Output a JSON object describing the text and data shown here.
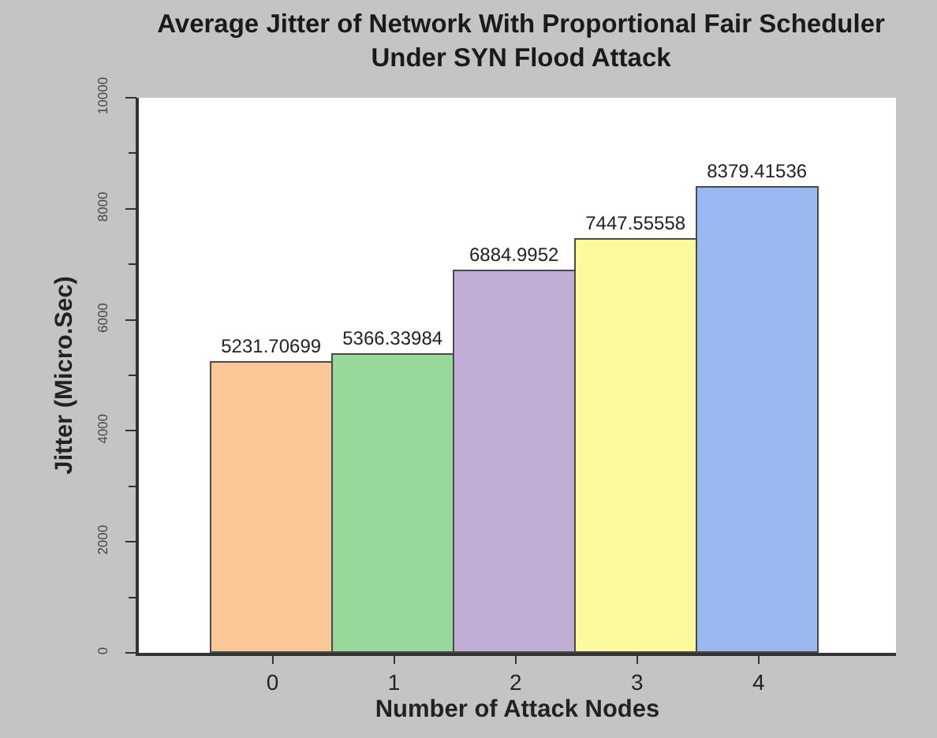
{
  "chart_data": {
    "type": "bar",
    "title": "Average Jitter of Network With Proportional Fair Scheduler Under SYN Flood Attack",
    "xlabel": "Number of Attack Nodes",
    "ylabel": "Jitter (Micro.Sec)",
    "categories": [
      "0",
      "1",
      "2",
      "3",
      "4"
    ],
    "values": [
      5231.70699,
      5366.33984,
      6884.9952,
      7447.55558,
      8379.41536
    ],
    "colors": [
      "#f9c896",
      "#98d89a",
      "#c0aed6",
      "#fdfa9d",
      "#98b8ef"
    ],
    "data_labels": true,
    "ylim": [
      0,
      10000
    ],
    "yticks": [
      0,
      {
        "value": 1000,
        "label": null
      },
      2000,
      {
        "value": 3000,
        "label": null
      },
      4000,
      {
        "value": 5000,
        "label": null
      },
      6000,
      {
        "value": 7000,
        "label": null
      },
      8000,
      {
        "value": 9000,
        "label": null
      },
      10000
    ]
  }
}
